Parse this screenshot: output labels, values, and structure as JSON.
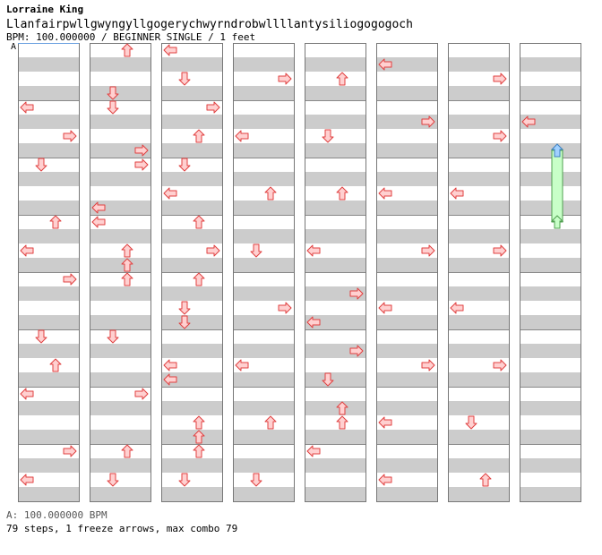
{
  "header": {
    "artist": "Lorraine King",
    "title": "Llanfairpwllgwyngyllgogerychwyrndrobwllllantysiliogogogoch",
    "info": "BPM: 100.000000 / BEGINNER SINGLE / 1 feet"
  },
  "bpm_marker": "A",
  "footer": {
    "bpm_line": "A: 100.000000 BPM",
    "stats": "79 steps, 1 freeze arrows, max combo 79"
  },
  "colors": {
    "stripe": "#cccccc",
    "arrow_fill": "#ffd0d0",
    "arrow_stroke": "#e04040",
    "freeze_body": "#c8ffc8",
    "freeze_stroke": "#50a050",
    "freeze_head": "#a0d0ff",
    "freeze_head_stroke": "#4080c0"
  },
  "chart_data": {
    "type": "step-chart",
    "columns": 8,
    "rows_per_column": 32,
    "directions": [
      "left",
      "down",
      "up",
      "right"
    ],
    "notes": [
      {
        "col": 0,
        "row": 4,
        "dir": "left"
      },
      {
        "col": 0,
        "row": 6,
        "dir": "right"
      },
      {
        "col": 0,
        "row": 8,
        "dir": "down"
      },
      {
        "col": 0,
        "row": 12,
        "dir": "up"
      },
      {
        "col": 0,
        "row": 14,
        "dir": "left"
      },
      {
        "col": 0,
        "row": 16,
        "dir": "right"
      },
      {
        "col": 0,
        "row": 20,
        "dir": "down"
      },
      {
        "col": 0,
        "row": 22,
        "dir": "up"
      },
      {
        "col": 0,
        "row": 24,
        "dir": "left"
      },
      {
        "col": 0,
        "row": 28,
        "dir": "right"
      },
      {
        "col": 0,
        "row": 30,
        "dir": "left"
      },
      {
        "col": 1,
        "row": 0,
        "dir": "up"
      },
      {
        "col": 1,
        "row": 3,
        "dir": "down"
      },
      {
        "col": 1,
        "row": 4,
        "dir": "down"
      },
      {
        "col": 1,
        "row": 7,
        "dir": "right"
      },
      {
        "col": 1,
        "row": 8,
        "dir": "right"
      },
      {
        "col": 1,
        "row": 11,
        "dir": "left"
      },
      {
        "col": 1,
        "row": 12,
        "dir": "left"
      },
      {
        "col": 1,
        "row": 14,
        "dir": "up"
      },
      {
        "col": 1,
        "row": 15,
        "dir": "up"
      },
      {
        "col": 1,
        "row": 16,
        "dir": "up"
      },
      {
        "col": 1,
        "row": 20,
        "dir": "down"
      },
      {
        "col": 1,
        "row": 24,
        "dir": "right"
      },
      {
        "col": 1,
        "row": 28,
        "dir": "up"
      },
      {
        "col": 1,
        "row": 30,
        "dir": "down"
      },
      {
        "col": 2,
        "row": 0,
        "dir": "left"
      },
      {
        "col": 2,
        "row": 2,
        "dir": "down"
      },
      {
        "col": 2,
        "row": 4,
        "dir": "right"
      },
      {
        "col": 2,
        "row": 6,
        "dir": "up"
      },
      {
        "col": 2,
        "row": 8,
        "dir": "down"
      },
      {
        "col": 2,
        "row": 10,
        "dir": "left"
      },
      {
        "col": 2,
        "row": 12,
        "dir": "up"
      },
      {
        "col": 2,
        "row": 14,
        "dir": "right"
      },
      {
        "col": 2,
        "row": 16,
        "dir": "up"
      },
      {
        "col": 2,
        "row": 18,
        "dir": "down"
      },
      {
        "col": 2,
        "row": 19,
        "dir": "down"
      },
      {
        "col": 2,
        "row": 22,
        "dir": "left"
      },
      {
        "col": 2,
        "row": 23,
        "dir": "left"
      },
      {
        "col": 2,
        "row": 26,
        "dir": "up"
      },
      {
        "col": 2,
        "row": 27,
        "dir": "up"
      },
      {
        "col": 2,
        "row": 28,
        "dir": "up"
      },
      {
        "col": 2,
        "row": 30,
        "dir": "down"
      },
      {
        "col": 3,
        "row": 2,
        "dir": "right"
      },
      {
        "col": 3,
        "row": 6,
        "dir": "left"
      },
      {
        "col": 3,
        "row": 10,
        "dir": "up"
      },
      {
        "col": 3,
        "row": 14,
        "dir": "down"
      },
      {
        "col": 3,
        "row": 18,
        "dir": "right"
      },
      {
        "col": 3,
        "row": 22,
        "dir": "left"
      },
      {
        "col": 3,
        "row": 26,
        "dir": "up"
      },
      {
        "col": 3,
        "row": 30,
        "dir": "down"
      },
      {
        "col": 4,
        "row": 2,
        "dir": "up"
      },
      {
        "col": 4,
        "row": 6,
        "dir": "down"
      },
      {
        "col": 4,
        "row": 10,
        "dir": "up"
      },
      {
        "col": 4,
        "row": 14,
        "dir": "left"
      },
      {
        "col": 4,
        "row": 17,
        "dir": "right"
      },
      {
        "col": 4,
        "row": 19,
        "dir": "left"
      },
      {
        "col": 4,
        "row": 21,
        "dir": "right"
      },
      {
        "col": 4,
        "row": 23,
        "dir": "down"
      },
      {
        "col": 4,
        "row": 25,
        "dir": "up"
      },
      {
        "col": 4,
        "row": 26,
        "dir": "up"
      },
      {
        "col": 4,
        "row": 28,
        "dir": "left"
      },
      {
        "col": 5,
        "row": 1,
        "dir": "left"
      },
      {
        "col": 5,
        "row": 5,
        "dir": "right"
      },
      {
        "col": 5,
        "row": 10,
        "dir": "left"
      },
      {
        "col": 5,
        "row": 14,
        "dir": "right"
      },
      {
        "col": 5,
        "row": 18,
        "dir": "left"
      },
      {
        "col": 5,
        "row": 22,
        "dir": "right"
      },
      {
        "col": 5,
        "row": 26,
        "dir": "left"
      },
      {
        "col": 5,
        "row": 30,
        "dir": "left"
      },
      {
        "col": 6,
        "row": 2,
        "dir": "right"
      },
      {
        "col": 6,
        "row": 6,
        "dir": "right"
      },
      {
        "col": 6,
        "row": 10,
        "dir": "left"
      },
      {
        "col": 6,
        "row": 14,
        "dir": "right"
      },
      {
        "col": 6,
        "row": 18,
        "dir": "left"
      },
      {
        "col": 6,
        "row": 22,
        "dir": "right"
      },
      {
        "col": 6,
        "row": 26,
        "dir": "down"
      },
      {
        "col": 6,
        "row": 30,
        "dir": "up"
      },
      {
        "col": 7,
        "row": 5,
        "dir": "left"
      }
    ],
    "freezes": [
      {
        "col": 7,
        "start_row": 7,
        "end_row": 12,
        "dir": "up"
      }
    ]
  }
}
